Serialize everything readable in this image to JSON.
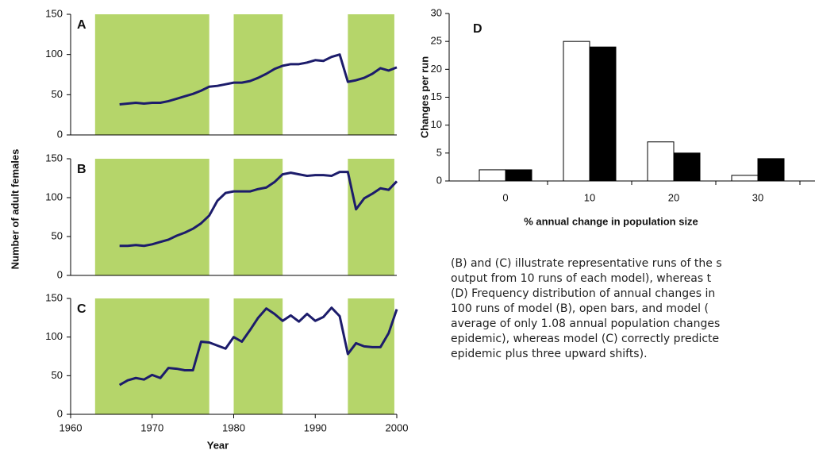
{
  "chart_data": [
    {
      "type": "line",
      "label": "A",
      "color": "#1c1c6b",
      "shade_color": "#b5d56a",
      "shaded_spans": [
        [
          1963,
          1977
        ],
        [
          1980,
          1986
        ],
        [
          1994,
          1999.7
        ]
      ],
      "xlim": [
        1960,
        2000
      ],
      "ylim": [
        0,
        150
      ],
      "yticks": [
        0,
        50,
        100,
        150
      ],
      "x": [
        1966,
        1967,
        1968,
        1969,
        1970,
        1971,
        1972,
        1973,
        1974,
        1975,
        1976,
        1977,
        1978,
        1979,
        1980,
        1981,
        1982,
        1983,
        1984,
        1985,
        1986,
        1987,
        1988,
        1989,
        1990,
        1991,
        1992,
        1993,
        1994,
        1995,
        1996,
        1997,
        1998,
        1999,
        2000
      ],
      "values": [
        38,
        39,
        40,
        39,
        40,
        40,
        42,
        45,
        48,
        51,
        55,
        60,
        61,
        63,
        65,
        65,
        67,
        71,
        76,
        82,
        86,
        88,
        88,
        90,
        93,
        92,
        97,
        100,
        66,
        68,
        71,
        76,
        83,
        80,
        84
      ]
    },
    {
      "type": "line",
      "label": "B",
      "ylabel": "Number of adult females",
      "color": "#1c1c6b",
      "shade_color": "#b5d56a",
      "shaded_spans": [
        [
          1963,
          1977
        ],
        [
          1980,
          1986
        ],
        [
          1994,
          1999.7
        ]
      ],
      "xlim": [
        1960,
        2000
      ],
      "ylim": [
        0,
        150
      ],
      "yticks": [
        0,
        50,
        100,
        150
      ],
      "x": [
        1966,
        1967,
        1968,
        1969,
        1970,
        1971,
        1972,
        1973,
        1974,
        1975,
        1976,
        1977,
        1978,
        1979,
        1980,
        1981,
        1982,
        1983,
        1984,
        1985,
        1986,
        1987,
        1988,
        1989,
        1990,
        1991,
        1992,
        1993,
        1994,
        1995,
        1996,
        1997,
        1998,
        1999,
        2000
      ],
      "values": [
        38,
        38,
        39,
        38,
        40,
        43,
        46,
        51,
        55,
        60,
        67,
        77,
        96,
        106,
        108,
        108,
        108,
        111,
        113,
        120,
        130,
        132,
        130,
        128,
        129,
        129,
        128,
        133,
        133,
        85,
        99,
        105,
        112,
        110,
        121
      ]
    },
    {
      "type": "line",
      "label": "C",
      "xlabel": "Year",
      "color": "#1c1c6b",
      "shade_color": "#b5d56a",
      "shaded_spans": [
        [
          1963,
          1977
        ],
        [
          1980,
          1986
        ],
        [
          1994,
          1999.7
        ]
      ],
      "xlim": [
        1960,
        2000
      ],
      "xticks": [
        1960,
        1970,
        1980,
        1990,
        2000
      ],
      "ylim": [
        0,
        150
      ],
      "yticks": [
        0,
        50,
        100,
        150
      ],
      "x": [
        1966,
        1967,
        1968,
        1969,
        1970,
        1971,
        1972,
        1973,
        1974,
        1975,
        1976,
        1977,
        1978,
        1979,
        1980,
        1981,
        1982,
        1983,
        1984,
        1985,
        1986,
        1987,
        1988,
        1989,
        1990,
        1991,
        1992,
        1993,
        1994,
        1995,
        1996,
        1997,
        1998,
        1999,
        2000
      ],
      "values": [
        38,
        44,
        47,
        45,
        51,
        47,
        60,
        59,
        57,
        57,
        94,
        93,
        89,
        85,
        100,
        94,
        109,
        125,
        137,
        130,
        121,
        128,
        120,
        130,
        121,
        126,
        138,
        127,
        78,
        92,
        88,
        87,
        87,
        105,
        136
      ]
    },
    {
      "type": "bar",
      "label": "D",
      "xlabel": "% annual change in population size",
      "ylabel": "Changes per run",
      "categories": [
        "0",
        "10",
        "20",
        "30"
      ],
      "ylim": [
        0,
        30
      ],
      "yticks": [
        0,
        5,
        10,
        15,
        20,
        25,
        30
      ],
      "series": [
        {
          "color": "#ffffff",
          "values": [
            2,
            25,
            7,
            1
          ]
        },
        {
          "color": "#000000",
          "values": [
            2,
            24,
            5,
            4
          ]
        }
      ]
    }
  ],
  "caption": {
    "lines": [
      "(B) and (C) illustrate representative runs of the s",
      "output from 10 runs of each model), whereas t",
      "(D) Frequency distribution of annual changes in",
      "100 runs of model (B), open bars, and model (",
      "average of only 1.08 annual population changes",
      "epidemic), whereas model (C) correctly predicte",
      "epidemic plus three upward shifts)."
    ]
  }
}
